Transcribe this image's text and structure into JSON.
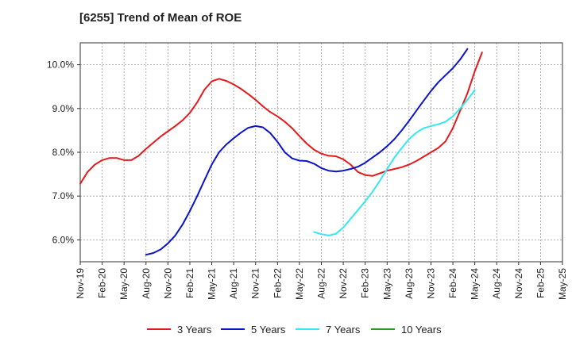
{
  "chart_data": {
    "type": "line",
    "title": "[6255]  Trend of Mean of ROE",
    "xlabel": "",
    "ylabel": "",
    "y_ticks": [
      "6.0%",
      "7.0%",
      "8.0%",
      "9.0%",
      "10.0%"
    ],
    "y_tick_values": [
      6.0,
      7.0,
      8.0,
      9.0,
      10.0
    ],
    "ylim": [
      5.5,
      10.5
    ],
    "x_tick_labels": [
      "Nov-19",
      "Feb-20",
      "May-20",
      "Aug-20",
      "Nov-20",
      "Feb-21",
      "May-21",
      "Aug-21",
      "Nov-21",
      "Feb-22",
      "May-22",
      "Aug-22",
      "Nov-22",
      "Feb-23",
      "May-23",
      "Aug-23",
      "Nov-23",
      "Feb-24",
      "May-24",
      "Aug-24",
      "Nov-24",
      "Feb-25",
      "May-25"
    ],
    "x_months_range": [
      0,
      66
    ],
    "grid": true,
    "legend_position": "bottom",
    "series": [
      {
        "name": "3 Years",
        "color": "#e41a1c",
        "points": [
          [
            0,
            7.28
          ],
          [
            1,
            7.55
          ],
          [
            2,
            7.72
          ],
          [
            3,
            7.82
          ],
          [
            4,
            7.87
          ],
          [
            5,
            7.87
          ],
          [
            6,
            7.82
          ],
          [
            7,
            7.82
          ],
          [
            8,
            7.92
          ],
          [
            9,
            8.08
          ],
          [
            10,
            8.22
          ],
          [
            11,
            8.36
          ],
          [
            12,
            8.48
          ],
          [
            13,
            8.6
          ],
          [
            14,
            8.73
          ],
          [
            15,
            8.9
          ],
          [
            16,
            9.14
          ],
          [
            17,
            9.43
          ],
          [
            18,
            9.62
          ],
          [
            19,
            9.68
          ],
          [
            20,
            9.63
          ],
          [
            21,
            9.55
          ],
          [
            22,
            9.45
          ],
          [
            23,
            9.33
          ],
          [
            24,
            9.2
          ],
          [
            25,
            9.05
          ],
          [
            26,
            8.92
          ],
          [
            27,
            8.82
          ],
          [
            28,
            8.7
          ],
          [
            29,
            8.55
          ],
          [
            30,
            8.37
          ],
          [
            31,
            8.2
          ],
          [
            32,
            8.06
          ],
          [
            33,
            7.97
          ],
          [
            34,
            7.92
          ],
          [
            35,
            7.91
          ],
          [
            36,
            7.84
          ],
          [
            37,
            7.72
          ],
          [
            38,
            7.55
          ],
          [
            39,
            7.48
          ],
          [
            40,
            7.46
          ],
          [
            41,
            7.52
          ],
          [
            42,
            7.58
          ],
          [
            43,
            7.62
          ],
          [
            44,
            7.66
          ],
          [
            45,
            7.72
          ],
          [
            46,
            7.8
          ],
          [
            47,
            7.9
          ],
          [
            48,
            8.0
          ],
          [
            49,
            8.1
          ],
          [
            50,
            8.25
          ],
          [
            51,
            8.55
          ],
          [
            52,
            8.95
          ],
          [
            53,
            9.35
          ],
          [
            54,
            9.85
          ],
          [
            55,
            10.28
          ]
        ]
      },
      {
        "name": "5 Years",
        "color": "#0a14c8",
        "points": [
          [
            9,
            5.66
          ],
          [
            10,
            5.7
          ],
          [
            11,
            5.78
          ],
          [
            12,
            5.92
          ],
          [
            13,
            6.1
          ],
          [
            14,
            6.35
          ],
          [
            15,
            6.66
          ],
          [
            16,
            7.0
          ],
          [
            17,
            7.36
          ],
          [
            18,
            7.72
          ],
          [
            19,
            8.0
          ],
          [
            20,
            8.18
          ],
          [
            21,
            8.32
          ],
          [
            22,
            8.45
          ],
          [
            23,
            8.56
          ],
          [
            24,
            8.6
          ],
          [
            25,
            8.57
          ],
          [
            26,
            8.44
          ],
          [
            27,
            8.24
          ],
          [
            28,
            8.0
          ],
          [
            29,
            7.86
          ],
          [
            30,
            7.81
          ],
          [
            31,
            7.8
          ],
          [
            32,
            7.74
          ],
          [
            33,
            7.64
          ],
          [
            34,
            7.58
          ],
          [
            35,
            7.56
          ],
          [
            36,
            7.58
          ],
          [
            37,
            7.62
          ],
          [
            38,
            7.67
          ],
          [
            39,
            7.76
          ],
          [
            40,
            7.88
          ],
          [
            41,
            8.0
          ],
          [
            42,
            8.14
          ],
          [
            43,
            8.3
          ],
          [
            44,
            8.5
          ],
          [
            45,
            8.72
          ],
          [
            46,
            8.95
          ],
          [
            47,
            9.18
          ],
          [
            48,
            9.4
          ],
          [
            49,
            9.6
          ],
          [
            50,
            9.76
          ],
          [
            51,
            9.92
          ],
          [
            52,
            10.12
          ],
          [
            53,
            10.36
          ]
        ]
      },
      {
        "name": "7 Years",
        "color": "#33e8f0",
        "points": [
          [
            32,
            6.18
          ],
          [
            33,
            6.13
          ],
          [
            34,
            6.1
          ],
          [
            35,
            6.14
          ],
          [
            36,
            6.28
          ],
          [
            37,
            6.48
          ],
          [
            38,
            6.68
          ],
          [
            39,
            6.88
          ],
          [
            40,
            7.1
          ],
          [
            41,
            7.35
          ],
          [
            42,
            7.62
          ],
          [
            43,
            7.88
          ],
          [
            44,
            8.1
          ],
          [
            45,
            8.3
          ],
          [
            46,
            8.45
          ],
          [
            47,
            8.55
          ],
          [
            48,
            8.6
          ],
          [
            49,
            8.64
          ],
          [
            50,
            8.7
          ],
          [
            51,
            8.82
          ],
          [
            52,
            9.0
          ],
          [
            53,
            9.2
          ],
          [
            54,
            9.42
          ]
        ]
      },
      {
        "name": "10 Years",
        "color": "#2a9a2a",
        "points": []
      }
    ]
  }
}
